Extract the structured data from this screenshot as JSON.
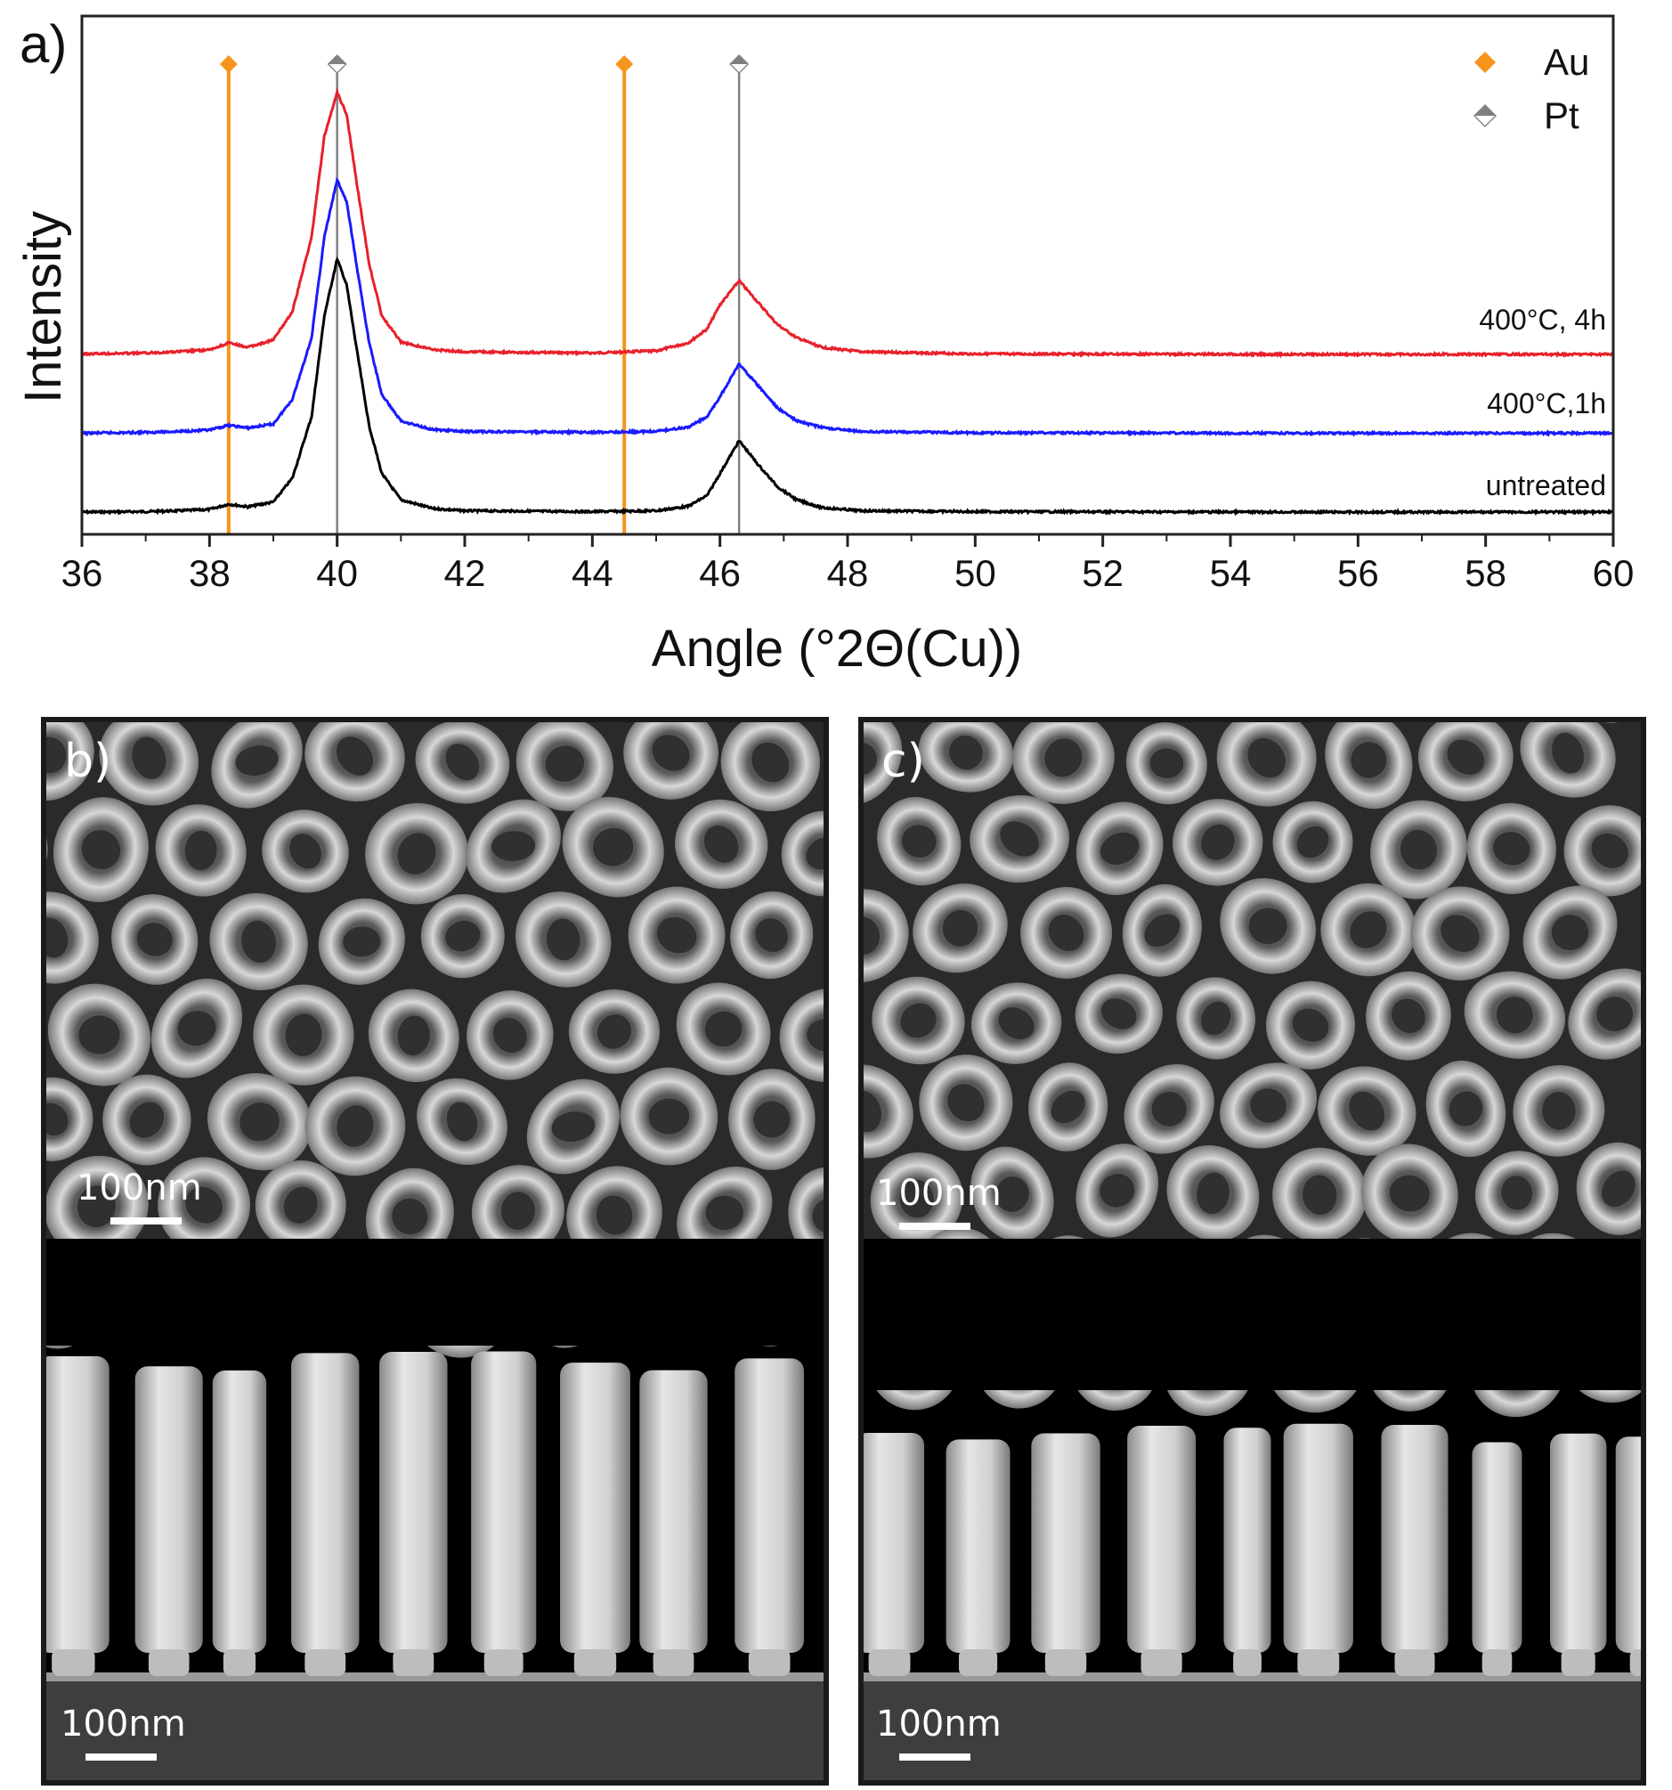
{
  "chart_data": {
    "type": "line",
    "panel_label": "a)",
    "xlabel": "Angle (°2Θ(Cu))",
    "ylabel": "Intensity",
    "xlim": [
      36,
      60
    ],
    "ylim": [
      0,
      100
    ],
    "xticks": [
      36,
      38,
      40,
      42,
      44,
      46,
      48,
      50,
      52,
      54,
      56,
      58,
      60
    ],
    "legend_position": "top-right",
    "legend": [
      {
        "name": "Au",
        "color": "#f7941d",
        "marker": "diamond-filled"
      },
      {
        "name": "Pt",
        "color": "#808080",
        "marker": "diamond-half"
      }
    ],
    "reference_lines": [
      {
        "phase": "Au",
        "x": 38.3,
        "color": "#f7941d"
      },
      {
        "phase": "Au",
        "x": 44.5,
        "color": "#f7941d"
      },
      {
        "phase": "Pt",
        "x": 40.0,
        "color": "#808080"
      },
      {
        "phase": "Pt",
        "x": 46.3,
        "color": "#808080"
      }
    ],
    "series": [
      {
        "name": "untreated",
        "color": "#000000",
        "x": [
          36,
          37,
          37.5,
          38,
          38.3,
          38.6,
          39,
          39.3,
          39.6,
          39.8,
          40,
          40.15,
          40.3,
          40.5,
          40.7,
          41,
          41.5,
          42,
          44,
          45,
          45.5,
          45.8,
          46,
          46.3,
          46.6,
          46.9,
          47.2,
          47.6,
          48.2,
          50,
          55,
          60
        ],
        "y": [
          0.2,
          0.3,
          0.5,
          0.8,
          2.0,
          1.4,
          2.5,
          8,
          22,
          45,
          58,
          52,
          38,
          20,
          9,
          3,
          1,
          0.5,
          0.3,
          0.5,
          1.5,
          4,
          9,
          16.5,
          11,
          6,
          3,
          1.2,
          0.5,
          0.3,
          0.2,
          0.2
        ]
      },
      {
        "name": "400°C,1h",
        "color": "#1a1aff",
        "x": [
          36,
          37,
          37.5,
          38,
          38.3,
          38.6,
          39,
          39.3,
          39.6,
          39.8,
          40,
          40.15,
          40.3,
          40.5,
          40.7,
          41,
          41.5,
          42,
          44,
          45,
          45.5,
          45.8,
          46,
          46.3,
          46.6,
          46.9,
          47.2,
          47.6,
          48.2,
          50,
          55,
          60
        ],
        "y": [
          18.2,
          18.4,
          18.6,
          18.9,
          20.0,
          19.4,
          20.3,
          26,
          40,
          63,
          76,
          71,
          57,
          39,
          27,
          21,
          19,
          18.6,
          18.4,
          18.6,
          19.6,
          22,
          26.5,
          34,
          29,
          24,
          21,
          19.5,
          18.6,
          18.3,
          18.2,
          18.2
        ]
      },
      {
        "name": "400°C, 4h",
        "color": "#e8202a",
        "x": [
          36,
          37,
          37.5,
          38,
          38.3,
          38.6,
          39,
          39.3,
          39.6,
          39.8,
          40,
          40.15,
          40.3,
          40.5,
          40.7,
          41,
          41.5,
          42,
          44,
          45,
          45.5,
          45.8,
          46,
          46.3,
          46.6,
          46.9,
          47.2,
          47.6,
          48.2,
          50,
          55,
          60
        ],
        "y": [
          36.3,
          36.5,
          36.8,
          37.2,
          38.8,
          37.8,
          39.5,
          46,
          63,
          86,
          96,
          91,
          76,
          57,
          45,
          39,
          37.3,
          36.8,
          36.5,
          37,
          38.8,
          42,
          47.5,
          53,
          48,
          43,
          40,
          37.8,
          36.8,
          36.3,
          36.2,
          36.2
        ]
      }
    ],
    "series_labels": [
      "400°C, 4h",
      "400°C,1h",
      "untreated"
    ]
  },
  "panels": [
    {
      "label": "b)",
      "scale_top": "100nm",
      "scale_bottom": "100nm"
    },
    {
      "label": "c)",
      "scale_top": "100nm",
      "scale_bottom": "100nm"
    }
  ]
}
